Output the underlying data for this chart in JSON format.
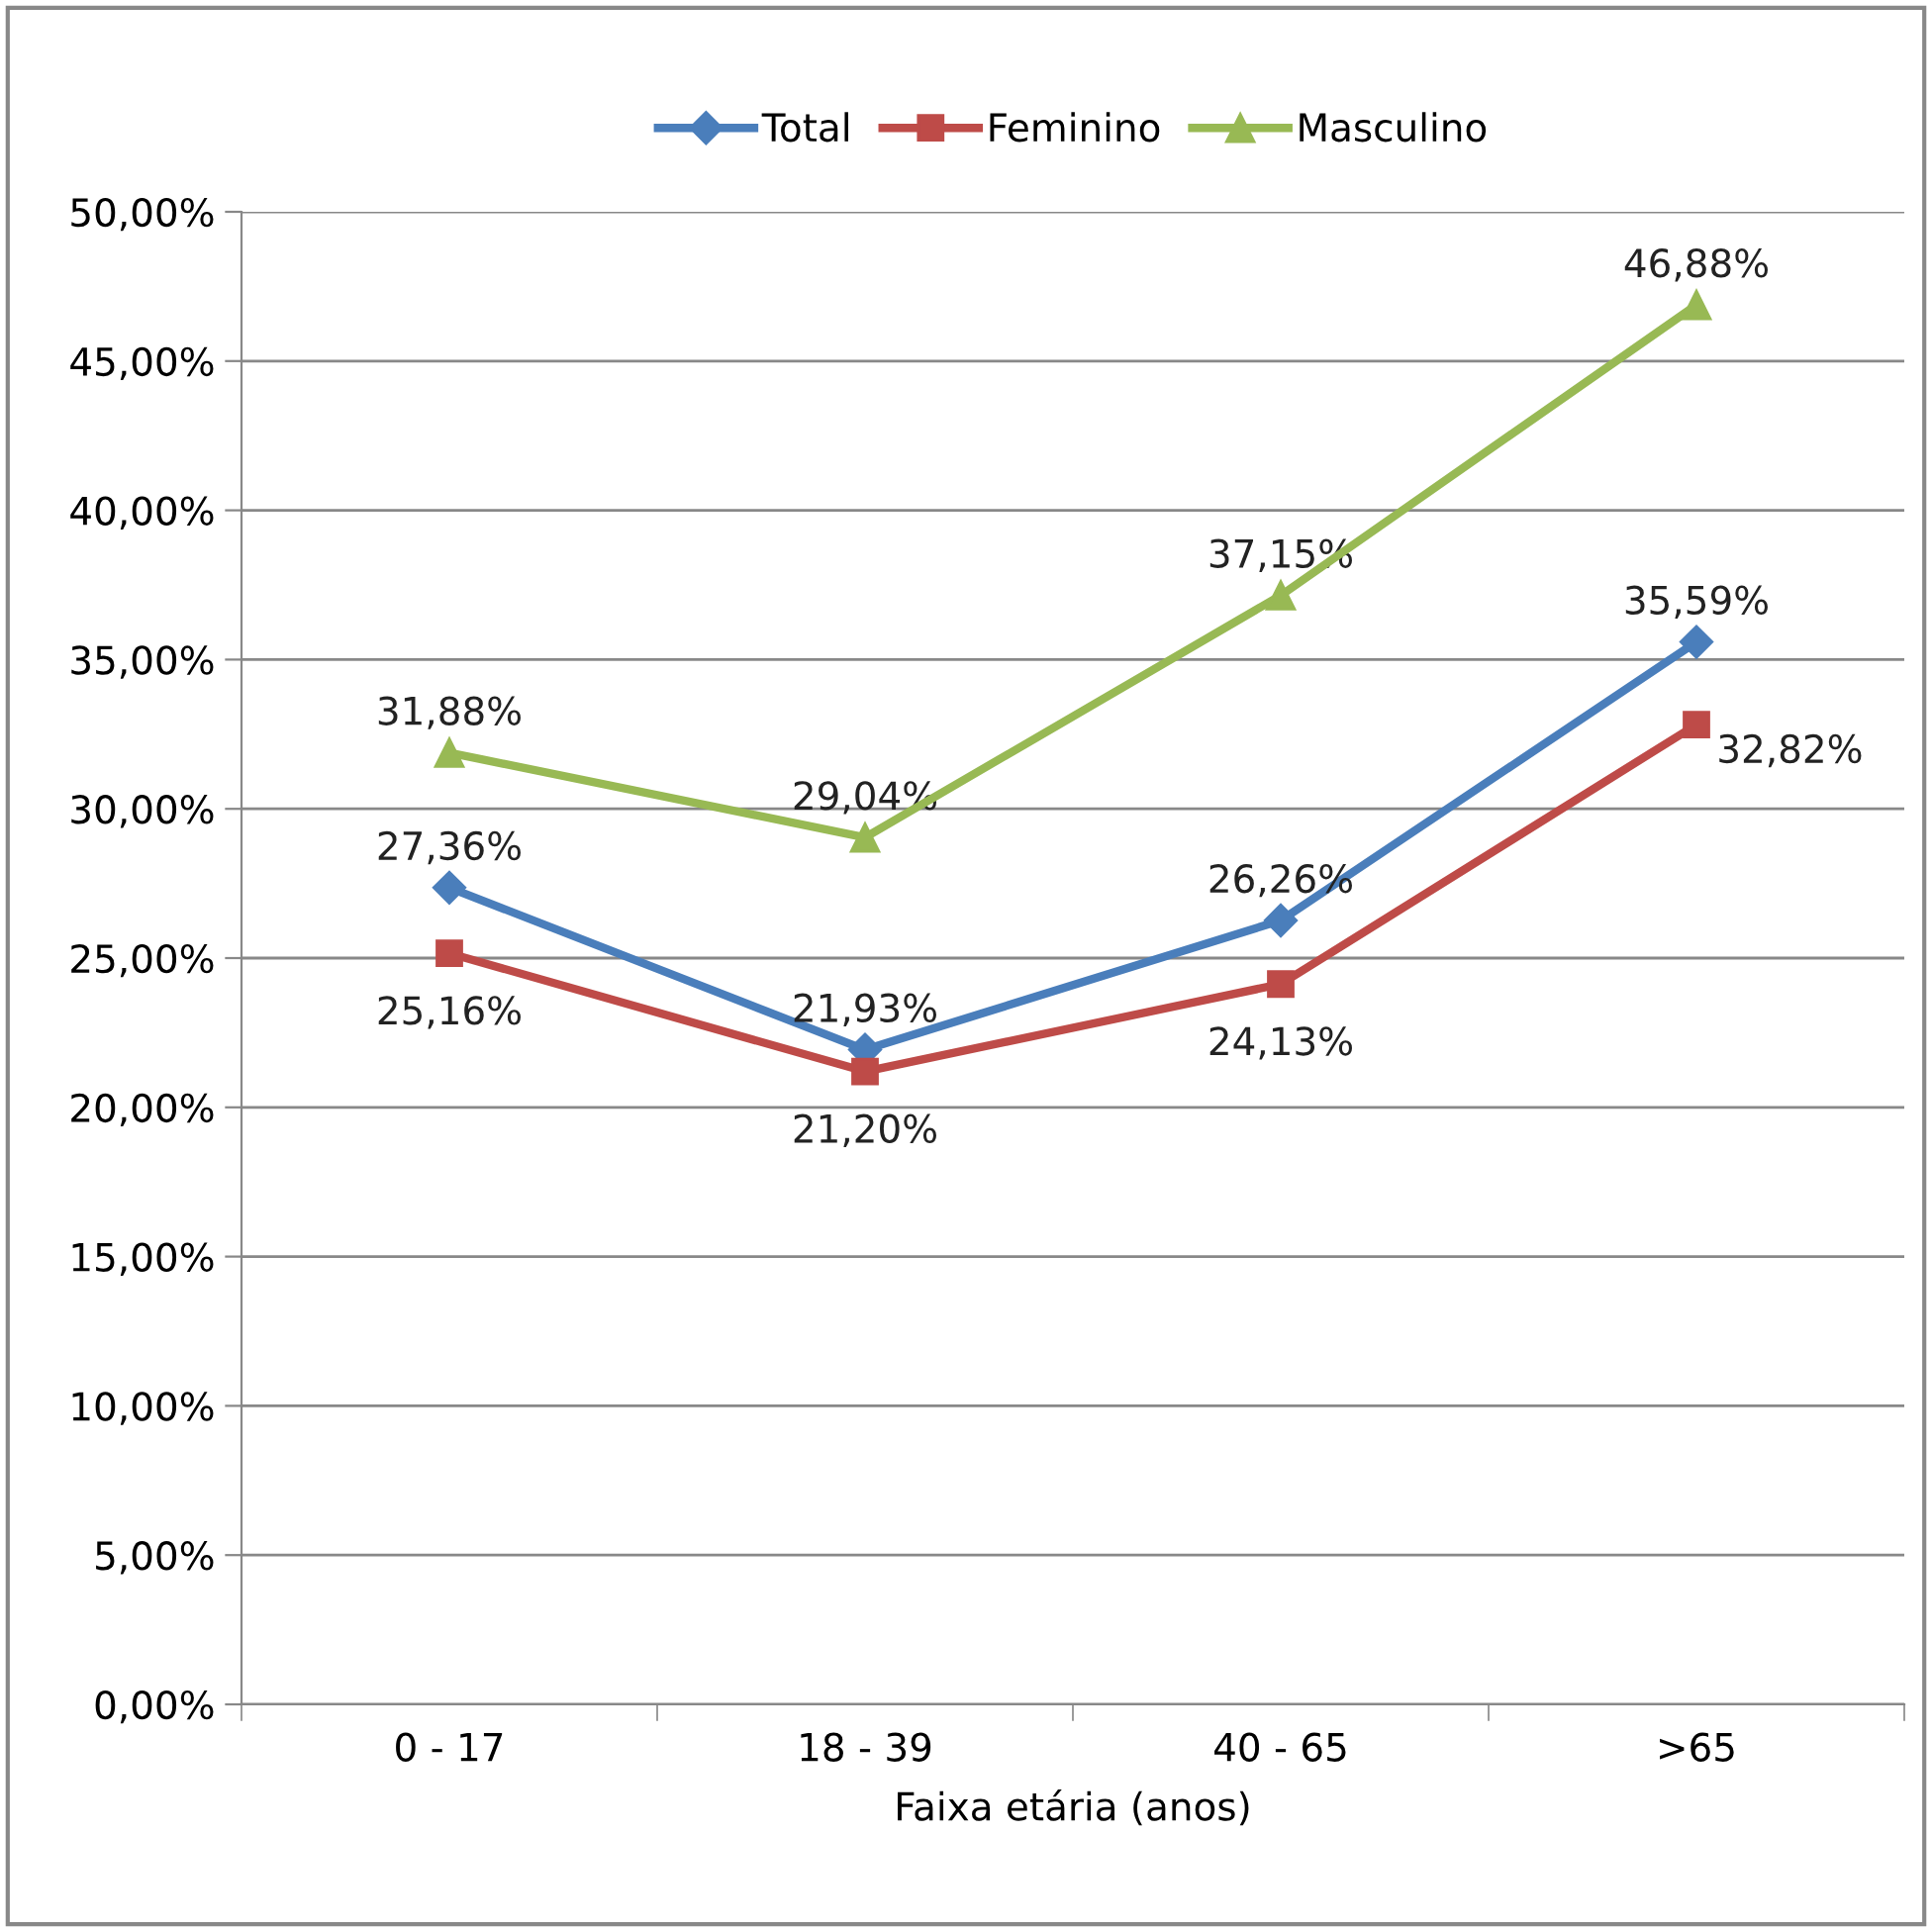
{
  "chart_data": {
    "type": "line",
    "xlabel": "Faixa etária (anos)",
    "categories": [
      "0 - 17",
      "18 - 39",
      "40 - 65",
      ">65"
    ],
    "series": [
      {
        "name": "Total",
        "color": "#4a7ebb",
        "marker": "diamond",
        "values": [
          27.36,
          21.93,
          26.26,
          35.59
        ],
        "value_labels": [
          "27,36%",
          "21,93%",
          "26,26%",
          "35,59%"
        ]
      },
      {
        "name": "Feminino",
        "color": "#be4b48",
        "marker": "square",
        "values": [
          25.16,
          21.2,
          24.13,
          32.82
        ],
        "value_labels": [
          "25,16%",
          "21,20%",
          "24,13%",
          "32,82%"
        ]
      },
      {
        "name": "Masculino",
        "color": "#98b954",
        "marker": "triangle",
        "values": [
          31.88,
          29.04,
          37.15,
          46.88
        ],
        "value_labels": [
          "31,88%",
          "29,04%",
          "37,15%",
          "46,88%"
        ]
      }
    ],
    "ylim": [
      0,
      50
    ],
    "yticks": [
      {
        "value": 0,
        "label": "0,00%"
      },
      {
        "value": 5,
        "label": "5,00%"
      },
      {
        "value": 10,
        "label": "10,00%"
      },
      {
        "value": 15,
        "label": "15,00%"
      },
      {
        "value": 20,
        "label": "20,00%"
      },
      {
        "value": 25,
        "label": "25,00%"
      },
      {
        "value": 30,
        "label": "30,00%"
      },
      {
        "value": 35,
        "label": "35,00%"
      },
      {
        "value": 40,
        "label": "40,00%"
      },
      {
        "value": 45,
        "label": "45,00%"
      },
      {
        "value": 50,
        "label": "50,00%"
      }
    ],
    "grid": "y",
    "legend": "top",
    "line_style": "solid"
  }
}
